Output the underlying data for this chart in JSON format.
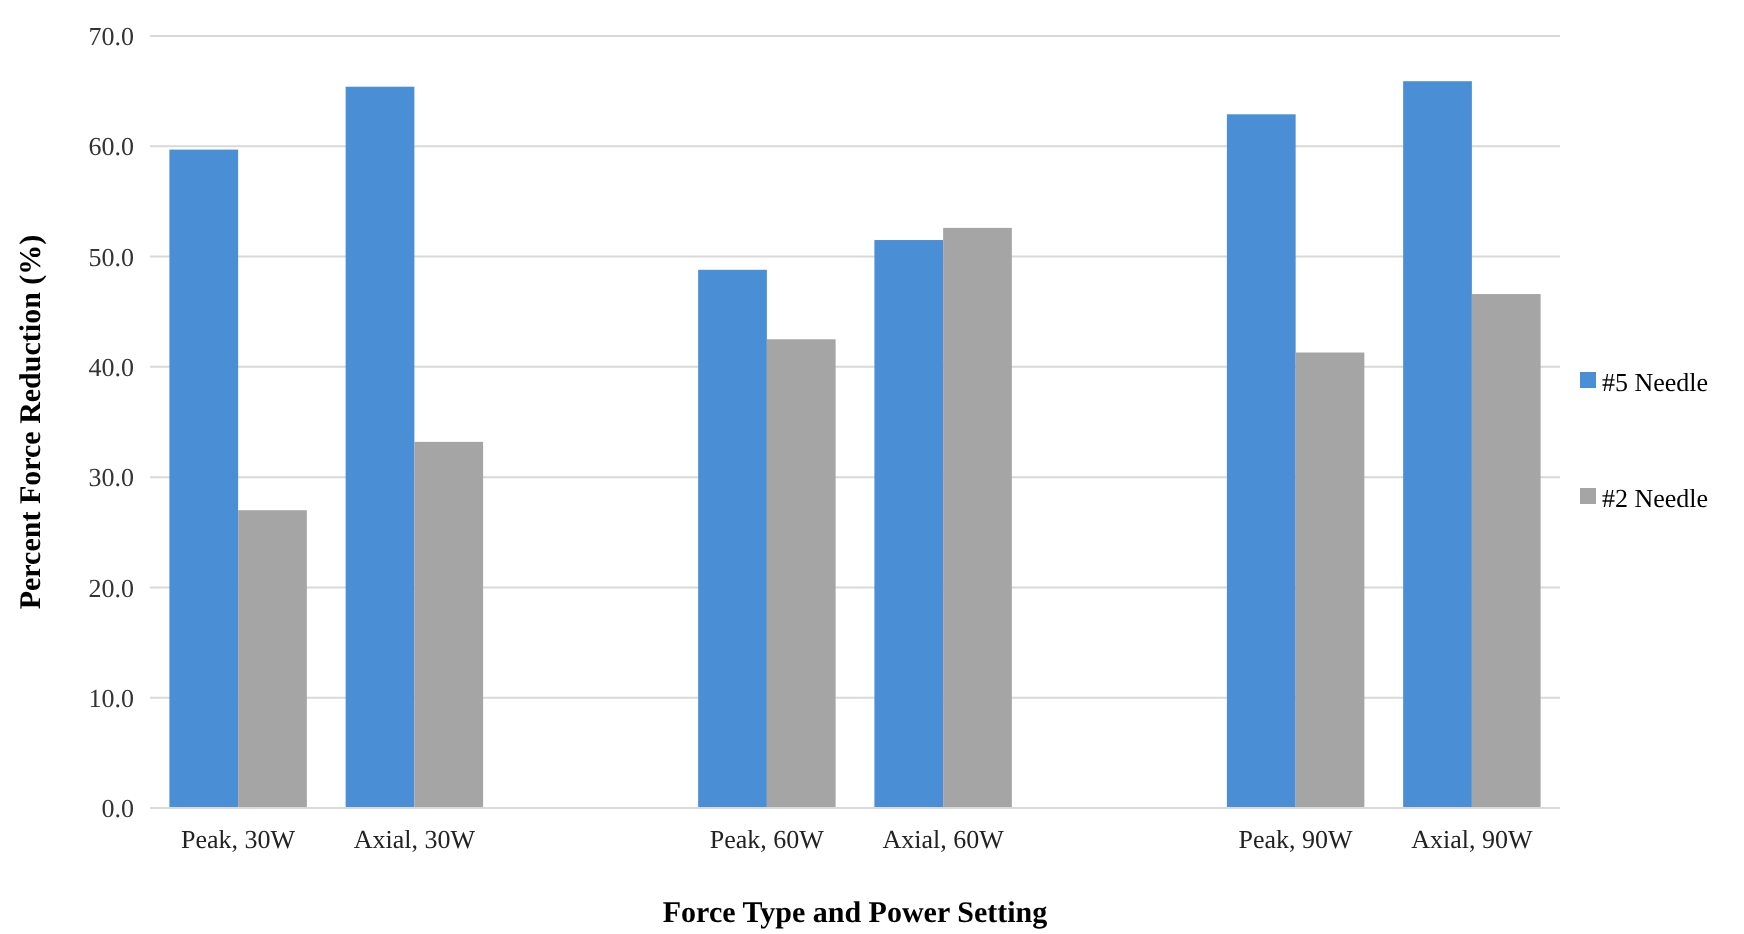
{
  "chart_data": {
    "type": "bar",
    "xlabel": "Force Type and Power Setting",
    "ylabel": "Percent Force Reduction (%)",
    "categories": [
      "Peak, 30W",
      "Axial, 30W",
      null,
      "Peak, 60W",
      "Axial, 60W",
      null,
      "Peak, 90W",
      "Axial, 90W"
    ],
    "series": [
      {
        "name": "#5 Needle",
        "color": "#4a8fd6",
        "values": [
          59.7,
          65.4,
          null,
          48.8,
          51.5,
          null,
          62.9,
          65.9
        ]
      },
      {
        "name": "#2 Needle",
        "color": "#a5a5a5",
        "values": [
          27.0,
          33.2,
          null,
          42.5,
          52.6,
          null,
          41.3,
          46.6
        ]
      }
    ],
    "ylim": [
      0,
      70
    ],
    "yticks": [
      {
        "value": 0,
        "label": "0.0"
      },
      {
        "value": 10,
        "label": "10.0"
      },
      {
        "value": 20,
        "label": "20.0"
      },
      {
        "value": 30,
        "label": "30.0"
      },
      {
        "value": 40,
        "label": "40.0"
      },
      {
        "value": 50,
        "label": "50.0"
      },
      {
        "value": 60,
        "label": "60.0"
      },
      {
        "value": 70,
        "label": "70.0"
      }
    ],
    "grid": "y",
    "legend": "right"
  }
}
